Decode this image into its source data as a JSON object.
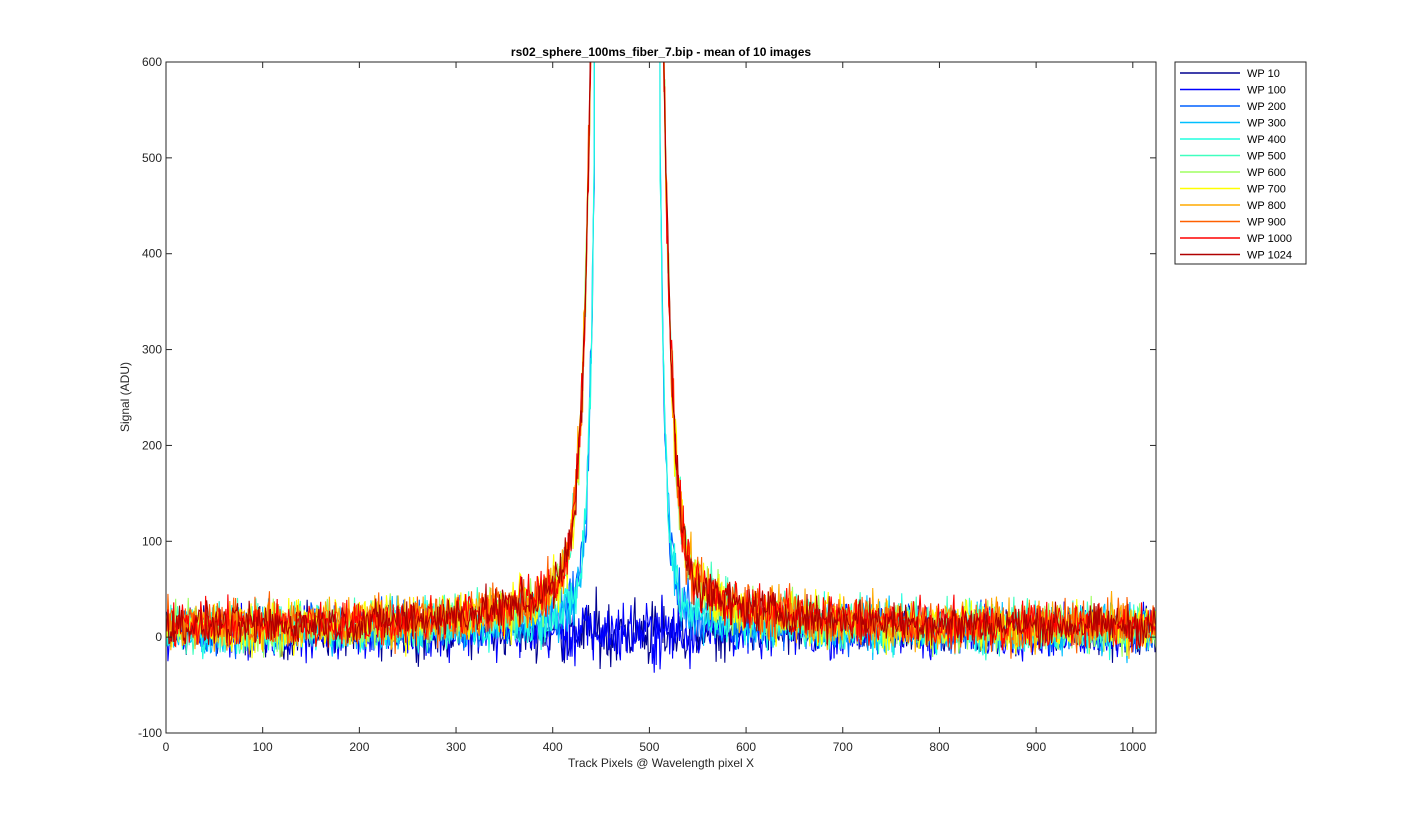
{
  "chart_data": {
    "type": "line",
    "title": "rs02_sphere_100ms_fiber_7.bip - mean of 10 images",
    "xlabel": "Track Pixels @ Wavelength pixel X",
    "ylabel": "Signal (ADU)",
    "xlim": [
      0,
      1024
    ],
    "ylim": [
      -100,
      600
    ],
    "xticks": [
      0,
      100,
      200,
      300,
      400,
      500,
      600,
      700,
      800,
      900,
      1000
    ],
    "yticks": [
      -100,
      0,
      100,
      200,
      300,
      400,
      500,
      600
    ],
    "grid": false,
    "legend_position": "outside-top-right",
    "series": [
      {
        "name": "WP 10",
        "color": "#00008f",
        "peak_x": 477,
        "peak_value": 85,
        "baseline": 5,
        "noise": 22,
        "profile": "flat"
      },
      {
        "name": "WP 100",
        "color": "#0000ff",
        "peak_x": 477,
        "peak_value": 85,
        "baseline": 5,
        "noise": 22,
        "profile": "flat"
      },
      {
        "name": "WP 200",
        "color": "#0060ff",
        "peak_x": 477,
        "peak_value": 600,
        "baseline": 8,
        "noise": 22,
        "profile": "narrow"
      },
      {
        "name": "WP 300",
        "color": "#00bfff",
        "peak_x": 477,
        "peak_value": 600,
        "baseline": 8,
        "noise": 22,
        "profile": "narrow"
      },
      {
        "name": "WP 400",
        "color": "#20ffdf",
        "peak_x": 477,
        "peak_value": 600,
        "baseline": 8,
        "noise": 22,
        "profile": "narrow"
      },
      {
        "name": "WP 500",
        "color": "#40ffbf",
        "peak_x": 477,
        "peak_value": 600,
        "baseline": 10,
        "noise": 22,
        "profile": "broad"
      },
      {
        "name": "WP 600",
        "color": "#9fff60",
        "peak_x": 477,
        "peak_value": 600,
        "baseline": 10,
        "noise": 22,
        "profile": "broad"
      },
      {
        "name": "WP 700",
        "color": "#ffff00",
        "peak_x": 477,
        "peak_value": 600,
        "baseline": 10,
        "noise": 22,
        "profile": "broad"
      },
      {
        "name": "WP 800",
        "color": "#ffaa00",
        "peak_x": 477,
        "peak_value": 600,
        "baseline": 12,
        "noise": 22,
        "profile": "broad"
      },
      {
        "name": "WP 900",
        "color": "#ff6000",
        "peak_x": 477,
        "peak_value": 600,
        "baseline": 12,
        "noise": 22,
        "profile": "broad"
      },
      {
        "name": "WP 1000",
        "color": "#ff0000",
        "peak_x": 477,
        "peak_value": 600,
        "baseline": 12,
        "noise": 20,
        "profile": "broad"
      },
      {
        "name": "WP 1024",
        "color": "#b00000",
        "peak_x": 477,
        "peak_value": 600,
        "baseline": 12,
        "noise": 18,
        "profile": "broad"
      }
    ]
  }
}
